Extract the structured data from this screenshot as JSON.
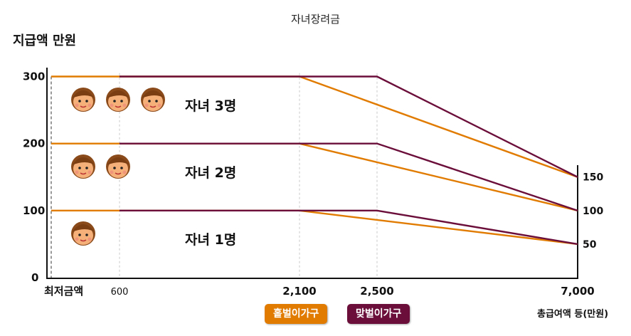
{
  "chart_data": {
    "type": "line",
    "title": "자녀장려금",
    "ylabel": "지급액 만원",
    "xlabel": "총급여액 등(만원)",
    "x_ticks": [
      "최저금액",
      "600",
      "2,100",
      "2,500",
      "7,000"
    ],
    "y_ticks": [
      "0",
      "100",
      "200",
      "300"
    ],
    "right_ticks": [
      "150",
      "100",
      "50"
    ],
    "ylim": [
      0,
      300
    ],
    "grid": "vertical dashed at 600, 2,100, 2,500",
    "legend_placement": "bottom-center",
    "series": [
      {
        "name": "홑벌이가구",
        "color": "#e07b00",
        "lines": [
          {
            "group": "자녀 3명",
            "x": [
              0,
              2100,
              7000
            ],
            "y": [
              300,
              300,
              150
            ]
          },
          {
            "group": "자녀 2명",
            "x": [
              0,
              2100,
              7000
            ],
            "y": [
              200,
              200,
              100
            ]
          },
          {
            "group": "자녀 1명",
            "x": [
              0,
              2100,
              7000
            ],
            "y": [
              100,
              100,
              50
            ]
          }
        ]
      },
      {
        "name": "맞벌이가구",
        "color": "#6b0f3a",
        "lines": [
          {
            "group": "자녀 3명",
            "x": [
              600,
              2500,
              7000
            ],
            "y": [
              300,
              300,
              150
            ]
          },
          {
            "group": "자녀 2명",
            "x": [
              600,
              2500,
              7000
            ],
            "y": [
              200,
              200,
              100
            ]
          },
          {
            "group": "자녀 1명",
            "x": [
              600,
              2500,
              7000
            ],
            "y": [
              100,
              100,
              50
            ]
          }
        ]
      }
    ],
    "annotations": [
      {
        "text": "자녀 3명",
        "children": 3,
        "y": 300
      },
      {
        "text": "자녀 2명",
        "children": 2,
        "y": 200
      },
      {
        "text": "자녀 1명",
        "children": 1,
        "y": 100
      }
    ]
  }
}
